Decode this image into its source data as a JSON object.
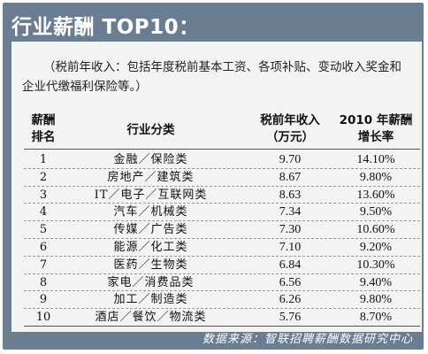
{
  "title": "行业薪酬 TOP10：",
  "note": "（税前年收入：包括年度税前基本工资、各项补贴、变动收入奖金和企业代缴福利保险等。）",
  "headers": {
    "rank": [
      "薪酬",
      "排名"
    ],
    "industry": "行业分类",
    "income": [
      "税前年收入",
      "（万元）"
    ],
    "growth": [
      "2010 年薪酬",
      "增长率"
    ]
  },
  "rows": [
    {
      "rank": "1",
      "industry": "金融／保险类",
      "income": "9.70",
      "growth": "14.10%"
    },
    {
      "rank": "2",
      "industry": "房地产／建筑类",
      "income": "8.67",
      "growth": "9.80%"
    },
    {
      "rank": "3",
      "industry": "IT／电子／互联网类",
      "income": "8.63",
      "growth": "13.60%"
    },
    {
      "rank": "4",
      "industry": "汽车／机械类",
      "income": "7.34",
      "growth": "9.50%"
    },
    {
      "rank": "5",
      "industry": "传媒／广告类",
      "income": "7.30",
      "growth": "10.60%"
    },
    {
      "rank": "6",
      "industry": "能源／化工类",
      "income": "7.10",
      "growth": "9.20%"
    },
    {
      "rank": "7",
      "industry": "医药／生物类",
      "income": "6.84",
      "growth": "10.30%"
    },
    {
      "rank": "8",
      "industry": "家电／消费品类",
      "income": "6.56",
      "growth": "9.40%"
    },
    {
      "rank": "9",
      "industry": "加工／制造类",
      "income": "6.26",
      "growth": "9.80%"
    },
    {
      "rank": "10",
      "industry": "酒店／餐饮／物流类",
      "income": "5.76",
      "growth": "8.70%"
    }
  ],
  "source": "数据来源：智联招聘薪酬数据研究中心"
}
